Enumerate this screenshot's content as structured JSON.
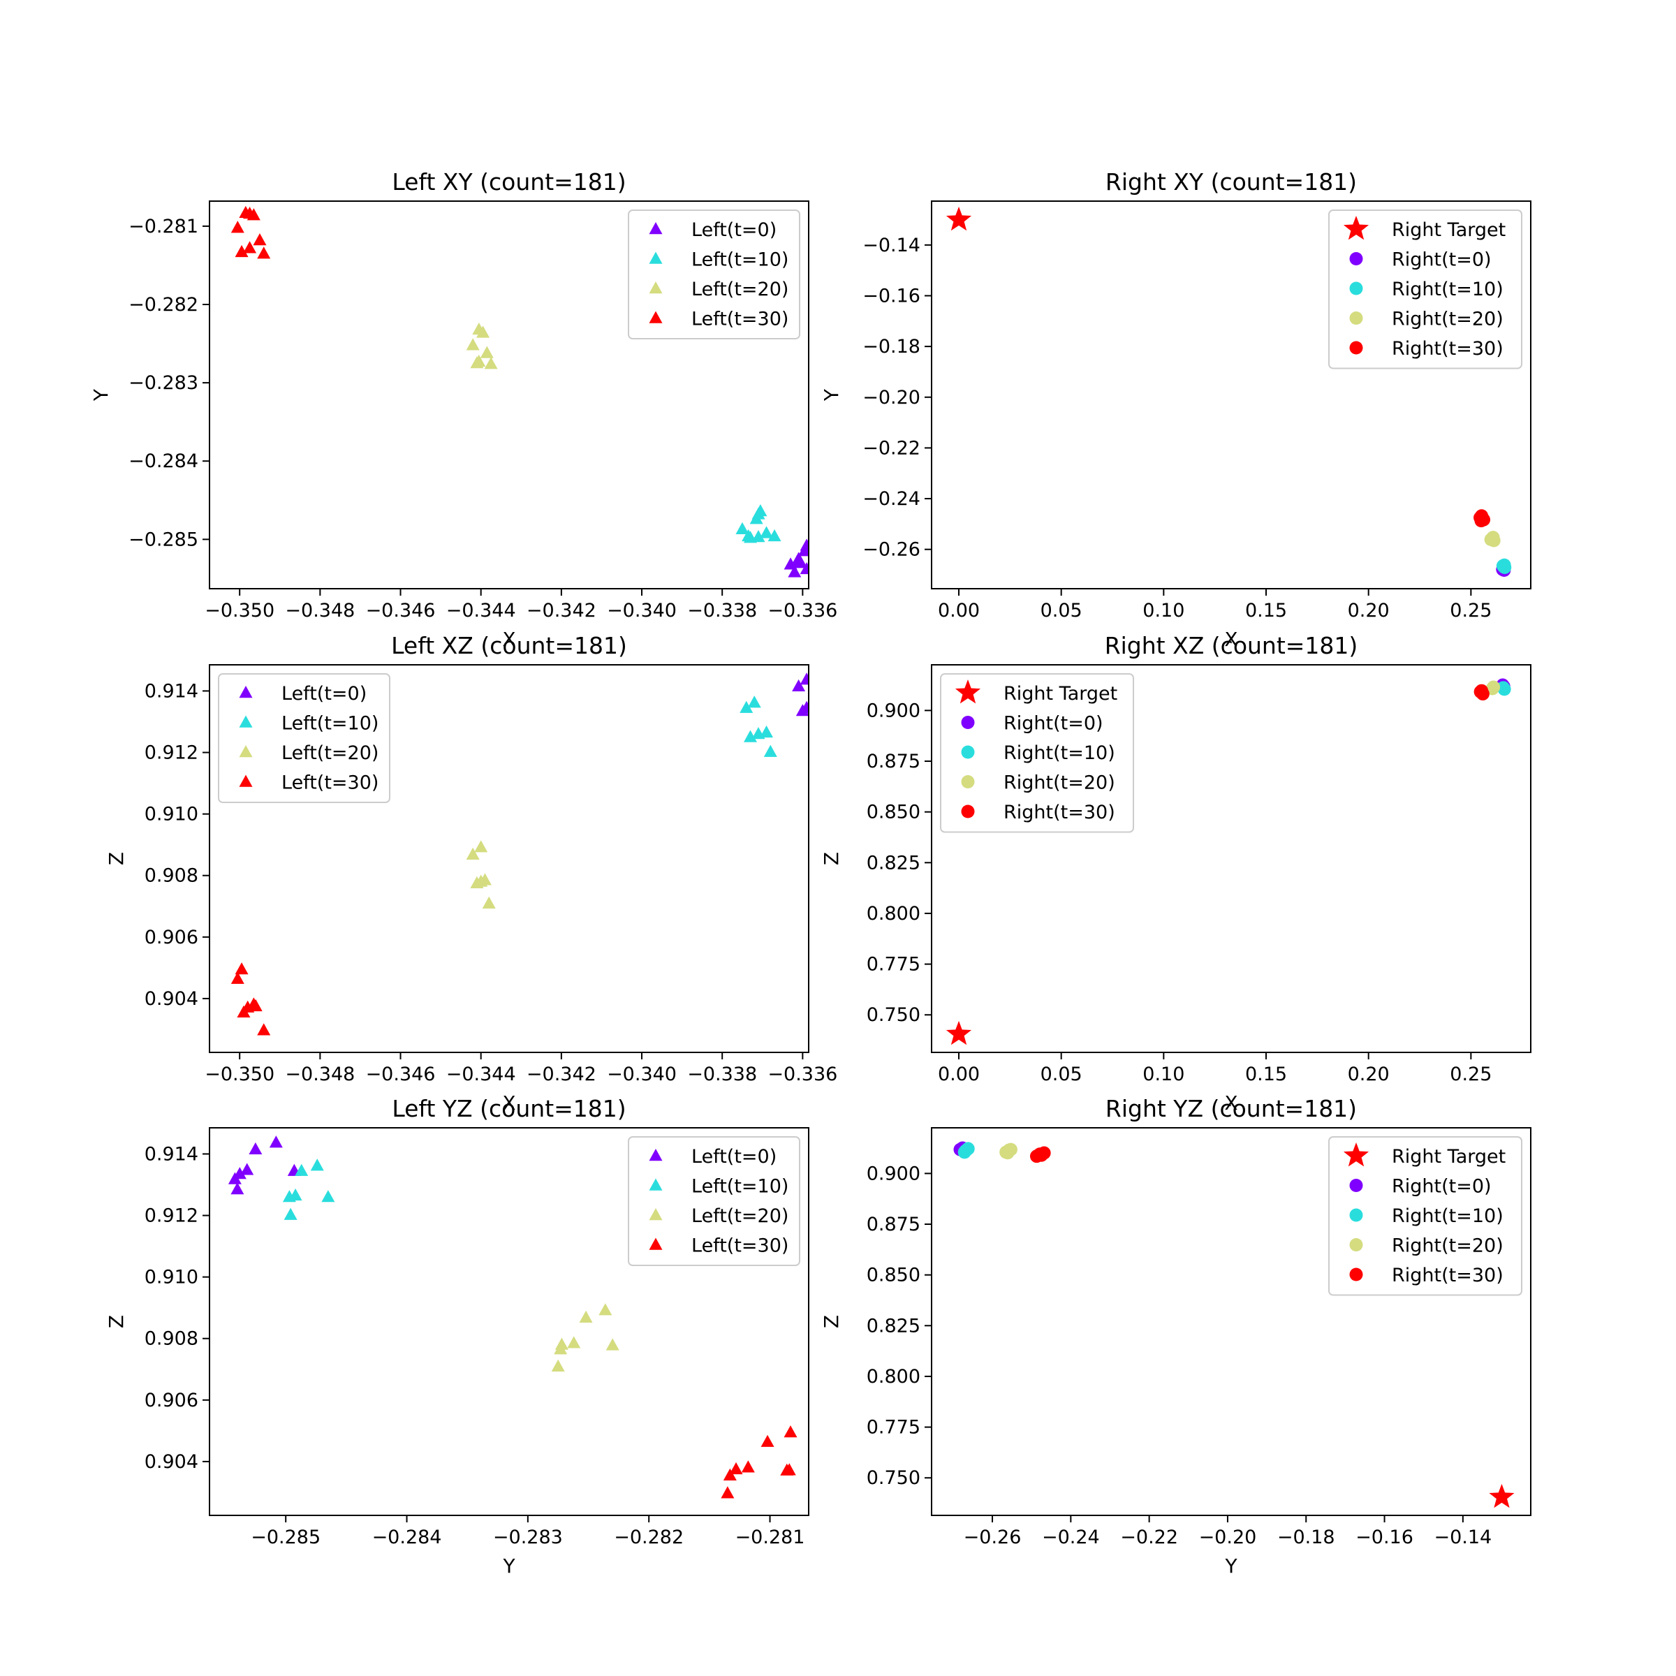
{
  "colors": {
    "t0": "#8000ff",
    "t10": "#2adddd",
    "t20": "#d4dc7f",
    "t30": "#ff0000",
    "target": "#ff0000"
  },
  "chart_data": [
    {
      "id": "left-xy",
      "type": "scatter",
      "title": "Left XY (count=181)",
      "xlabel": "X",
      "ylabel": "Y",
      "xlim": [
        -0.35075,
        -0.33585
      ],
      "ylim": [
        -0.28563,
        -0.28068
      ],
      "xticks": [
        -0.35,
        -0.348,
        -0.346,
        -0.344,
        -0.342,
        -0.34,
        -0.338,
        -0.336
      ],
      "xtick_labels": [
        "−0.350",
        "−0.348",
        "−0.346",
        "−0.344",
        "−0.342",
        "−0.340",
        "−0.338",
        "−0.336"
      ],
      "yticks": [
        -0.281,
        -0.282,
        -0.283,
        -0.284,
        -0.285
      ],
      "ytick_labels": [
        "−0.281",
        "−0.282",
        "−0.283",
        "−0.284",
        "−0.285"
      ],
      "legend": "top-right",
      "series": [
        {
          "name": "Left(t=0)",
          "marker": "triangle",
          "color_key": "t0",
          "points": [
            [
              -0.3359,
              -0.28508
            ],
            [
              -0.33595,
              -0.28515
            ],
            [
              -0.3361,
              -0.28525
            ],
            [
              -0.33605,
              -0.2853
            ],
            [
              -0.3363,
              -0.28532
            ],
            [
              -0.3358,
              -0.28537
            ],
            [
              -0.3362,
              -0.28542
            ],
            [
              -0.3359,
              -0.28538
            ],
            [
              -0.33565,
              -0.2854
            ],
            [
              -0.3361,
              -0.2853
            ]
          ]
        },
        {
          "name": "Left(t=10)",
          "marker": "triangle",
          "color_key": "t10",
          "points": [
            [
              -0.33705,
              -0.28464
            ],
            [
              -0.3371,
              -0.28468
            ],
            [
              -0.33715,
              -0.28474
            ],
            [
              -0.3375,
              -0.28487
            ],
            [
              -0.3369,
              -0.28492
            ],
            [
              -0.33735,
              -0.28496
            ],
            [
              -0.3373,
              -0.28498
            ],
            [
              -0.3367,
              -0.28496
            ],
            [
              -0.3371,
              -0.28497
            ]
          ]
        },
        {
          "name": "Left(t=20)",
          "marker": "triangle",
          "color_key": "t20",
          "points": [
            [
              -0.34405,
              -0.28232
            ],
            [
              -0.34395,
              -0.28236
            ],
            [
              -0.3442,
              -0.28252
            ],
            [
              -0.34385,
              -0.28262
            ],
            [
              -0.34405,
              -0.28273
            ],
            [
              -0.34375,
              -0.28276
            ],
            [
              -0.3441,
              -0.28275
            ]
          ]
        },
        {
          "name": "Left(t=30)",
          "marker": "triangle",
          "color_key": "t30",
          "points": [
            [
              -0.34985,
              -0.28083
            ],
            [
              -0.34965,
              -0.28086
            ],
            [
              -0.34975,
              -0.28084
            ],
            [
              -0.35005,
              -0.28102
            ],
            [
              -0.3495,
              -0.28118
            ],
            [
              -0.34975,
              -0.28128
            ],
            [
              -0.34995,
              -0.28133
            ],
            [
              -0.3494,
              -0.28135
            ]
          ]
        }
      ]
    },
    {
      "id": "right-xy",
      "type": "scatter",
      "title": "Right XY (count=181)",
      "xlabel": "X",
      "ylabel": "Y",
      "xlim": [
        -0.0133,
        0.2792
      ],
      "ylim": [
        -0.2755,
        -0.1227
      ],
      "xticks": [
        0,
        0.05,
        0.1,
        0.15,
        0.2,
        0.25
      ],
      "xtick_labels": [
        "0.00",
        "0.05",
        "0.10",
        "0.15",
        "0.20",
        "0.25"
      ],
      "yticks": [
        -0.14,
        -0.16,
        -0.18,
        -0.2,
        -0.22,
        -0.24,
        -0.26
      ],
      "ytick_labels": [
        "−0.14",
        "−0.16",
        "−0.18",
        "−0.20",
        "−0.22",
        "−0.24",
        "−0.26"
      ],
      "legend": "top-right",
      "series": [
        {
          "name": "Right Target",
          "marker": "star",
          "color_key": "target",
          "points": [
            [
              0.0,
              -0.1301
            ]
          ]
        },
        {
          "name": "Right(t=0)",
          "marker": "circle",
          "color_key": "t0",
          "points": [
            [
              0.2658,
              -0.2676
            ],
            [
              0.2662,
              -0.2682
            ],
            [
              0.2655,
              -0.2679
            ]
          ]
        },
        {
          "name": "Right(t=10)",
          "marker": "circle",
          "color_key": "t10",
          "points": [
            [
              0.2663,
              -0.2662
            ],
            [
              0.266,
              -0.2668
            ],
            [
              0.2665,
              -0.2671
            ],
            [
              0.2657,
              -0.2665
            ]
          ]
        },
        {
          "name": "Right(t=20)",
          "marker": "circle",
          "color_key": "t20",
          "points": [
            [
              0.2605,
              -0.2557
            ],
            [
              0.2612,
              -0.2565
            ],
            [
              0.2598,
              -0.2561
            ],
            [
              0.2608,
              -0.2553
            ]
          ]
        },
        {
          "name": "Right(t=30)",
          "marker": "circle",
          "color_key": "t30",
          "points": [
            [
              0.2552,
              -0.2468
            ],
            [
              0.2558,
              -0.2479
            ],
            [
              0.2545,
              -0.2475
            ],
            [
              0.2562,
              -0.2483
            ],
            [
              0.255,
              -0.2487
            ]
          ]
        }
      ]
    },
    {
      "id": "left-xz",
      "type": "scatter",
      "title": "Left XZ (count=181)",
      "xlabel": "X",
      "ylabel": "Z",
      "xlim": [
        -0.35075,
        -0.33585
      ],
      "ylim": [
        0.90225,
        0.91485
      ],
      "xticks": [
        -0.35,
        -0.348,
        -0.346,
        -0.344,
        -0.342,
        -0.34,
        -0.338,
        -0.336
      ],
      "xtick_labels": [
        "−0.350",
        "−0.348",
        "−0.346",
        "−0.344",
        "−0.342",
        "−0.340",
        "−0.338",
        "−0.336"
      ],
      "yticks": [
        0.914,
        0.912,
        0.91,
        0.908,
        0.906,
        0.904
      ],
      "ytick_labels": [
        "0.914",
        "0.912",
        "0.910",
        "0.908",
        "0.906",
        "0.904"
      ],
      "legend": "top-left",
      "series": [
        {
          "name": "Left(t=0)",
          "marker": "triangle",
          "color_key": "t0",
          "points": [
            [
              -0.3359,
              0.91437
            ],
            [
              -0.3361,
              0.91415
            ],
            [
              -0.3359,
              0.91345
            ],
            [
              -0.33575,
              0.91348
            ],
            [
              -0.336,
              0.91335
            ],
            [
              -0.33555,
              0.91285
            ]
          ]
        },
        {
          "name": "Left(t=10)",
          "marker": "triangle",
          "color_key": "t10",
          "points": [
            [
              -0.3372,
              0.91362
            ],
            [
              -0.3374,
              0.91345
            ],
            [
              -0.3369,
              0.91265
            ],
            [
              -0.3371,
              0.9126
            ],
            [
              -0.3373,
              0.9125
            ],
            [
              -0.3368,
              0.91202
            ]
          ]
        },
        {
          "name": "Left(t=20)",
          "marker": "triangle",
          "color_key": "t20",
          "points": [
            [
              -0.344,
              0.90892
            ],
            [
              -0.3442,
              0.90868
            ],
            [
              -0.3439,
              0.90785
            ],
            [
              -0.344,
              0.9078
            ],
            [
              -0.3441,
              0.90775
            ],
            [
              -0.3438,
              0.90709
            ]
          ]
        },
        {
          "name": "Left(t=30)",
          "marker": "triangle",
          "color_key": "t30",
          "points": [
            [
              -0.34995,
              0.90495
            ],
            [
              -0.35005,
              0.90464
            ],
            [
              -0.34965,
              0.90381
            ],
            [
              -0.3496,
              0.90375
            ],
            [
              -0.3498,
              0.90371
            ],
            [
              -0.3499,
              0.90355
            ],
            [
              -0.3494,
              0.90297
            ]
          ]
        }
      ]
    },
    {
      "id": "right-xz",
      "type": "scatter",
      "title": "Right XZ (count=181)",
      "xlabel": "X",
      "ylabel": "Z",
      "xlim": [
        -0.0133,
        0.2792
      ],
      "ylim": [
        0.7315,
        0.9225
      ],
      "xticks": [
        0,
        0.05,
        0.1,
        0.15,
        0.2,
        0.25
      ],
      "xtick_labels": [
        "0.00",
        "0.05",
        "0.10",
        "0.15",
        "0.20",
        "0.25"
      ],
      "yticks": [
        0.9,
        0.875,
        0.85,
        0.825,
        0.8,
        0.775,
        0.75
      ],
      "ytick_labels": [
        "0.900",
        "0.875",
        "0.850",
        "0.825",
        "0.800",
        "0.775",
        "0.750"
      ],
      "legend": "top-left",
      "series": [
        {
          "name": "Right Target",
          "marker": "star",
          "color_key": "target",
          "points": [
            [
              0.0,
              0.7405
            ]
          ]
        },
        {
          "name": "Right(t=0)",
          "marker": "circle",
          "color_key": "t0",
          "points": [
            [
              0.2655,
              0.9125
            ],
            [
              0.266,
              0.9118
            ]
          ]
        },
        {
          "name": "Right(t=10)",
          "marker": "circle",
          "color_key": "t10",
          "points": [
            [
              0.2663,
              0.9105
            ],
            [
              0.2658,
              0.9112
            ]
          ]
        },
        {
          "name": "Right(t=20)",
          "marker": "circle",
          "color_key": "t20",
          "points": [
            [
              0.2605,
              0.9108
            ],
            [
              0.261,
              0.9115
            ]
          ]
        },
        {
          "name": "Right(t=30)",
          "marker": "circle",
          "color_key": "t30",
          "points": [
            [
              0.2552,
              0.9097
            ],
            [
              0.2558,
              0.9082
            ],
            [
              0.2547,
              0.9092
            ]
          ]
        }
      ]
    },
    {
      "id": "left-yz",
      "type": "scatter",
      "title": "Left YZ (count=181)",
      "xlabel": "Y",
      "ylabel": "Z",
      "xlim": [
        -0.28563,
        -0.28068
      ],
      "ylim": [
        0.90225,
        0.91485
      ],
      "xticks": [
        -0.285,
        -0.284,
        -0.283,
        -0.282,
        -0.281
      ],
      "xtick_labels": [
        "−0.285",
        "−0.284",
        "−0.283",
        "−0.282",
        "−0.281"
      ],
      "yticks": [
        0.914,
        0.912,
        0.91,
        0.908,
        0.906,
        0.904
      ],
      "ytick_labels": [
        "0.914",
        "0.912",
        "0.910",
        "0.908",
        "0.906",
        "0.904"
      ],
      "legend": "top-right",
      "series": [
        {
          "name": "Left(t=0)",
          "marker": "triangle",
          "color_key": "t0",
          "points": [
            [
              -0.28508,
              0.91437
            ],
            [
              -0.28525,
              0.91415
            ],
            [
              -0.28493,
              0.91345
            ],
            [
              -0.28532,
              0.91348
            ],
            [
              -0.28538,
              0.91335
            ],
            [
              -0.28542,
              0.91318
            ],
            [
              -0.2854,
              0.91285
            ]
          ]
        },
        {
          "name": "Left(t=10)",
          "marker": "triangle",
          "color_key": "t10",
          "points": [
            [
              -0.28474,
              0.91362
            ],
            [
              -0.28487,
              0.91345
            ],
            [
              -0.28492,
              0.91265
            ],
            [
              -0.28497,
              0.9126
            ],
            [
              -0.28465,
              0.9126
            ],
            [
              -0.28496,
              0.91202
            ]
          ]
        },
        {
          "name": "Left(t=20)",
          "marker": "triangle",
          "color_key": "t20",
          "points": [
            [
              -0.28236,
              0.90892
            ],
            [
              -0.28252,
              0.90868
            ],
            [
              -0.28262,
              0.90785
            ],
            [
              -0.28272,
              0.9078
            ],
            [
              -0.2823,
              0.90778
            ],
            [
              -0.28273,
              0.90765
            ],
            [
              -0.28275,
              0.90709
            ]
          ]
        },
        {
          "name": "Left(t=30)",
          "marker": "triangle",
          "color_key": "t30",
          "points": [
            [
              -0.28083,
              0.90495
            ],
            [
              -0.28102,
              0.90464
            ],
            [
              -0.28118,
              0.90381
            ],
            [
              -0.28128,
              0.90375
            ],
            [
              -0.28086,
              0.90371
            ],
            [
              -0.28133,
              0.90355
            ],
            [
              -0.28084,
              0.90372
            ],
            [
              -0.28135,
              0.90297
            ]
          ]
        }
      ]
    },
    {
      "id": "right-yz",
      "type": "scatter",
      "title": "Right YZ (count=181)",
      "xlabel": "Y",
      "ylabel": "Z",
      "xlim": [
        -0.2755,
        -0.1227
      ],
      "ylim": [
        0.7315,
        0.9225
      ],
      "xticks": [
        -0.26,
        -0.24,
        -0.22,
        -0.2,
        -0.18,
        -0.16,
        -0.14
      ],
      "xtick_labels": [
        "−0.26",
        "−0.24",
        "−0.22",
        "−0.20",
        "−0.18",
        "−0.16",
        "−0.14"
      ],
      "yticks": [
        0.9,
        0.875,
        0.85,
        0.825,
        0.8,
        0.775,
        0.75
      ],
      "ytick_labels": [
        "0.900",
        "0.875",
        "0.850",
        "0.825",
        "0.800",
        "0.775",
        "0.750"
      ],
      "legend": "top-right",
      "series": [
        {
          "name": "Right Target",
          "marker": "star",
          "color_key": "target",
          "points": [
            [
              -0.1301,
              0.7405
            ]
          ]
        },
        {
          "name": "Right(t=0)",
          "marker": "circle",
          "color_key": "t0",
          "points": [
            [
              -0.2676,
              0.9125
            ],
            [
              -0.2682,
              0.9118
            ]
          ]
        },
        {
          "name": "Right(t=10)",
          "marker": "circle",
          "color_key": "t10",
          "points": [
            [
              -0.2662,
              0.9122
            ],
            [
              -0.2671,
              0.9105
            ],
            [
              -0.2668,
              0.9112
            ]
          ]
        },
        {
          "name": "Right(t=20)",
          "marker": "circle",
          "color_key": "t20",
          "points": [
            [
              -0.2557,
              0.9115
            ],
            [
              -0.2565,
              0.9105
            ],
            [
              -0.2561,
              0.9102
            ],
            [
              -0.2553,
              0.9118
            ]
          ]
        },
        {
          "name": "Right(t=30)",
          "marker": "circle",
          "color_key": "t30",
          "points": [
            [
              -0.2468,
              0.9101
            ],
            [
              -0.2479,
              0.9095
            ],
            [
              -0.2487,
              0.9085
            ],
            [
              -0.2475,
              0.909
            ]
          ]
        }
      ]
    }
  ]
}
